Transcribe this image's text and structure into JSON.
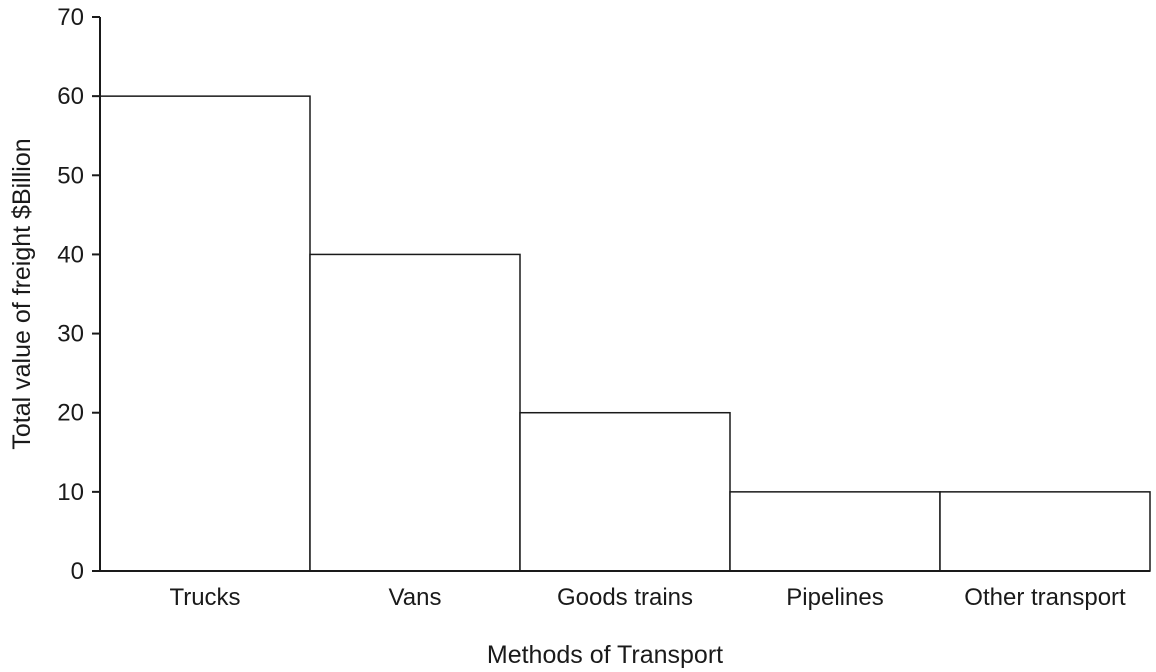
{
  "chart_data": {
    "type": "bar",
    "title": "",
    "xlabel": "Methods of Transport",
    "ylabel": "Total value of freight $Billion",
    "categories": [
      "Trucks",
      "Vans",
      "Goods trains",
      "Pipelines",
      "Other transport"
    ],
    "values": [
      60,
      40,
      20,
      10,
      10
    ],
    "ylim": [
      0,
      70
    ],
    "yticks": [
      0,
      10,
      20,
      30,
      40,
      50,
      60,
      70
    ],
    "grid": false,
    "legend": "none",
    "bar_fill": "#ffffff",
    "bar_stroke": "#1a1a1a"
  }
}
